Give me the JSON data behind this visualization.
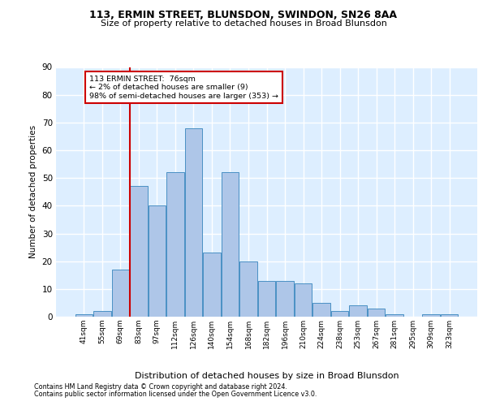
{
  "title1": "113, ERMIN STREET, BLUNSDON, SWINDON, SN26 8AA",
  "title2": "Size of property relative to detached houses in Broad Blunsdon",
  "xlabel": "Distribution of detached houses by size in Broad Blunsdon",
  "ylabel": "Number of detached properties",
  "footer1": "Contains HM Land Registry data © Crown copyright and database right 2024.",
  "footer2": "Contains public sector information licensed under the Open Government Licence v3.0.",
  "annotation_line1": "113 ERMIN STREET:  76sqm",
  "annotation_line2": "← 2% of detached houses are smaller (9)",
  "annotation_line3": "98% of semi-detached houses are larger (353) →",
  "bar_labels": [
    "41sqm",
    "55sqm",
    "69sqm",
    "83sqm",
    "97sqm",
    "112sqm",
    "126sqm",
    "140sqm",
    "154sqm",
    "168sqm",
    "182sqm",
    "196sqm",
    "210sqm",
    "224sqm",
    "238sqm",
    "253sqm",
    "267sqm",
    "281sqm",
    "295sqm",
    "309sqm",
    "323sqm"
  ],
  "bar_values": [
    1,
    2,
    17,
    47,
    40,
    52,
    68,
    23,
    52,
    20,
    13,
    13,
    12,
    5,
    2,
    4,
    3,
    1,
    0,
    1,
    1
  ],
  "bar_color": "#aec6e8",
  "bar_edge_color": "#4a90c4",
  "background_color": "#ddeeff",
  "grid_color": "#ffffff",
  "marker_color": "#cc0000",
  "ylim": [
    0,
    90
  ],
  "yticks": [
    0,
    10,
    20,
    30,
    40,
    50,
    60,
    70,
    80,
    90
  ]
}
